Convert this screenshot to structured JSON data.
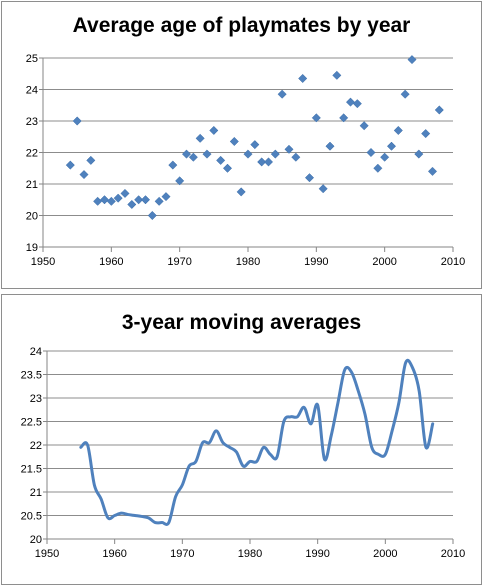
{
  "chart_data": [
    {
      "type": "scatter",
      "title": "Average age of playmates by year",
      "xlabel": "",
      "ylabel": "",
      "xlim": [
        1950,
        2010
      ],
      "ylim": [
        19,
        25
      ],
      "xticks": [
        1950,
        1960,
        1970,
        1980,
        1990,
        2000,
        2010
      ],
      "yticks": [
        19,
        20,
        21,
        22,
        23,
        24,
        25
      ],
      "grid": "horizontal",
      "legend": "none",
      "marker": "diamond",
      "color": "#4f81bd",
      "points": [
        [
          1954,
          21.6
        ],
        [
          1955,
          23.0
        ],
        [
          1956,
          21.3
        ],
        [
          1957,
          21.75
        ],
        [
          1958,
          20.45
        ],
        [
          1959,
          20.5
        ],
        [
          1960,
          20.45
        ],
        [
          1961,
          20.55
        ],
        [
          1962,
          20.7
        ],
        [
          1963,
          20.35
        ],
        [
          1964,
          20.5
        ],
        [
          1965,
          20.5
        ],
        [
          1966,
          20.0
        ],
        [
          1967,
          20.45
        ],
        [
          1968,
          20.6
        ],
        [
          1969,
          21.6
        ],
        [
          1970,
          21.1
        ],
        [
          1971,
          21.95
        ],
        [
          1972,
          21.85
        ],
        [
          1973,
          22.45
        ],
        [
          1974,
          21.95
        ],
        [
          1975,
          22.7
        ],
        [
          1976,
          21.75
        ],
        [
          1977,
          21.5
        ],
        [
          1978,
          22.35
        ],
        [
          1979,
          20.75
        ],
        [
          1980,
          21.95
        ],
        [
          1981,
          22.25
        ],
        [
          1982,
          21.7
        ],
        [
          1983,
          21.7
        ],
        [
          1984,
          21.95
        ],
        [
          1985,
          23.85
        ],
        [
          1986,
          22.1
        ],
        [
          1987,
          21.85
        ],
        [
          1988,
          24.35
        ],
        [
          1989,
          21.2
        ],
        [
          1990,
          23.1
        ],
        [
          1991,
          20.85
        ],
        [
          1992,
          22.2
        ],
        [
          1993,
          24.45
        ],
        [
          1994,
          23.1
        ],
        [
          1995,
          23.6
        ],
        [
          1996,
          23.55
        ],
        [
          1997,
          22.85
        ],
        [
          1998,
          22.0
        ],
        [
          1999,
          21.5
        ],
        [
          2000,
          21.85
        ],
        [
          2001,
          22.2
        ],
        [
          2002,
          22.7
        ],
        [
          2003,
          23.85
        ],
        [
          2004,
          24.95
        ],
        [
          2005,
          21.95
        ],
        [
          2006,
          22.6
        ],
        [
          2007,
          21.4
        ],
        [
          2008,
          23.35
        ]
      ]
    },
    {
      "type": "line",
      "title": "3-year moving averages",
      "xlabel": "",
      "ylabel": "",
      "xlim": [
        1950,
        2010
      ],
      "ylim": [
        20,
        24
      ],
      "xticks": [
        1950,
        1960,
        1970,
        1980,
        1990,
        2000,
        2010
      ],
      "yticks": [
        20,
        20.5,
        21,
        21.5,
        22,
        22.5,
        23,
        23.5,
        24
      ],
      "grid": "horizontal",
      "legend": "none",
      "smooth": true,
      "color": "#4f81bd",
      "points": [
        [
          1955,
          21.95
        ],
        [
          1956,
          22.0
        ],
        [
          1957,
          21.15
        ],
        [
          1958,
          20.85
        ],
        [
          1959,
          20.45
        ],
        [
          1960,
          20.5
        ],
        [
          1961,
          20.55
        ],
        [
          1962,
          20.52
        ],
        [
          1963,
          20.5
        ],
        [
          1964,
          20.48
        ],
        [
          1965,
          20.45
        ],
        [
          1966,
          20.35
        ],
        [
          1967,
          20.35
        ],
        [
          1968,
          20.35
        ],
        [
          1969,
          20.9
        ],
        [
          1970,
          21.15
        ],
        [
          1971,
          21.55
        ],
        [
          1972,
          21.65
        ],
        [
          1973,
          22.05
        ],
        [
          1974,
          22.05
        ],
        [
          1975,
          22.3
        ],
        [
          1976,
          22.05
        ],
        [
          1977,
          21.95
        ],
        [
          1978,
          21.85
        ],
        [
          1979,
          21.55
        ],
        [
          1980,
          21.65
        ],
        [
          1981,
          21.65
        ],
        [
          1982,
          21.95
        ],
        [
          1983,
          21.8
        ],
        [
          1984,
          21.75
        ],
        [
          1985,
          22.5
        ],
        [
          1986,
          22.6
        ],
        [
          1987,
          22.6
        ],
        [
          1988,
          22.8
        ],
        [
          1989,
          22.45
        ],
        [
          1990,
          22.85
        ],
        [
          1991,
          21.7
        ],
        [
          1992,
          22.2
        ],
        [
          1993,
          22.9
        ],
        [
          1994,
          23.6
        ],
        [
          1995,
          23.55
        ],
        [
          1996,
          23.15
        ],
        [
          1997,
          22.65
        ],
        [
          1998,
          21.95
        ],
        [
          1999,
          21.8
        ],
        [
          2000,
          21.8
        ],
        [
          2001,
          22.3
        ],
        [
          2002,
          22.9
        ],
        [
          2003,
          23.75
        ],
        [
          2004,
          23.65
        ],
        [
          2005,
          23.15
        ],
        [
          2006,
          21.95
        ],
        [
          2007,
          22.45
        ]
      ]
    }
  ]
}
